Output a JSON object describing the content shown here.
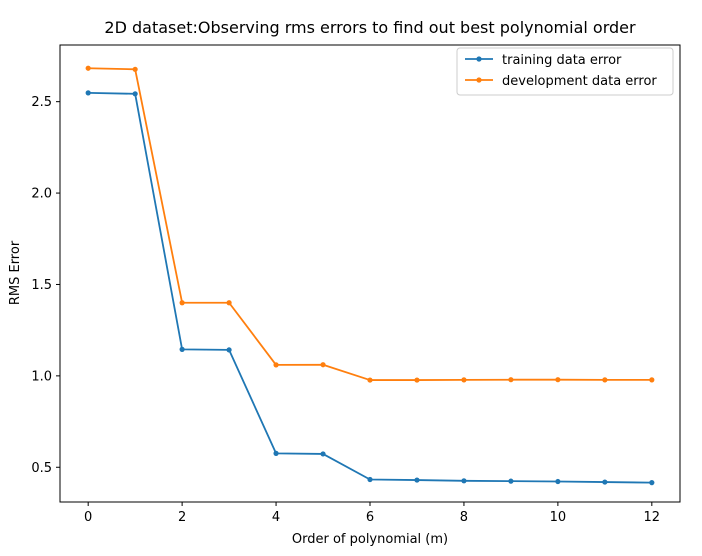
{
  "chart_data": {
    "type": "line",
    "title": "2D dataset:Observing rms errors to find out best polynomial order",
    "xlabel": "Order of polynomial (m)",
    "ylabel": "RMS Error",
    "x": [
      0,
      1,
      2,
      3,
      4,
      5,
      6,
      7,
      8,
      9,
      10,
      11,
      12
    ],
    "xlim": [
      -0.6,
      12.6
    ],
    "ylim": [
      0.31,
      2.81
    ],
    "xticks": [
      0,
      2,
      4,
      6,
      8,
      10,
      12
    ],
    "xtick_labels": [
      "0",
      "2",
      "4",
      "6",
      "8",
      "10",
      "12"
    ],
    "yticks": [
      0.5,
      1.0,
      1.5,
      2.0,
      2.5
    ],
    "ytick_labels": [
      "0.5",
      "1.0",
      "1.5",
      "2.0",
      "2.5"
    ],
    "grid": false,
    "legend_position": "top-right",
    "series": [
      {
        "name": "training data error",
        "color": "#1f77b4",
        "marker": "circle",
        "values": [
          2.548,
          2.543,
          1.145,
          1.142,
          0.576,
          0.573,
          0.433,
          0.43,
          0.426,
          0.424,
          0.422,
          0.419,
          0.416
        ]
      },
      {
        "name": "development data error",
        "color": "#ff7f0e",
        "marker": "circle",
        "values": [
          2.683,
          2.677,
          1.4,
          1.4,
          1.06,
          1.061,
          0.977,
          0.977,
          0.978,
          0.979,
          0.979,
          0.978,
          0.978
        ]
      }
    ]
  }
}
